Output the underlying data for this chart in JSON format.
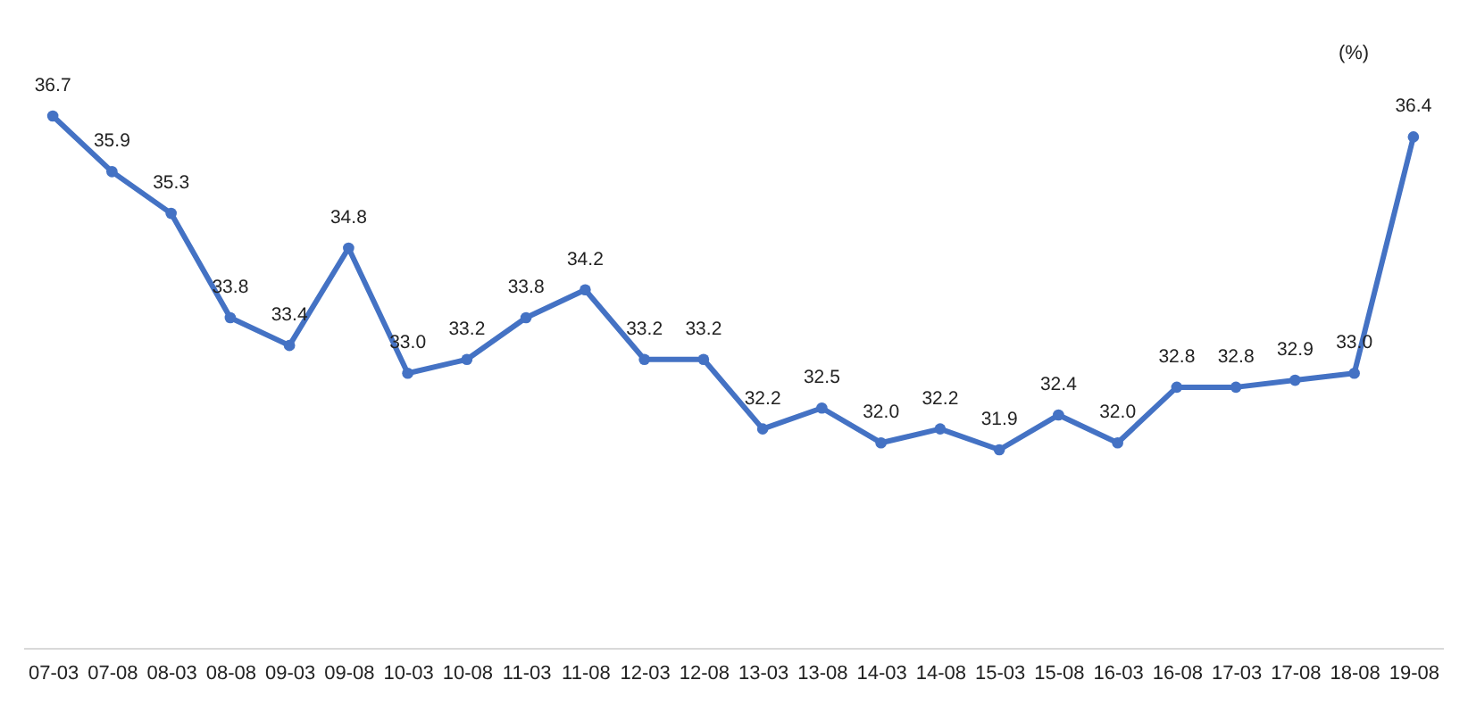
{
  "chart_data": {
    "type": "line",
    "categories": [
      "07-03",
      "07-08",
      "08-03",
      "08-08",
      "09-03",
      "09-08",
      "10-03",
      "10-08",
      "11-03",
      "11-08",
      "12-03",
      "12-08",
      "13-03",
      "13-08",
      "14-03",
      "14-08",
      "15-03",
      "15-08",
      "16-03",
      "16-08",
      "17-03",
      "17-08",
      "18-08",
      "19-08"
    ],
    "series": [
      {
        "color": "#4472c4",
        "values": [
          36.7,
          35.9,
          35.3,
          33.8,
          33.4,
          34.8,
          33.0,
          33.2,
          33.8,
          34.2,
          33.2,
          33.2,
          32.2,
          32.5,
          32.0,
          32.2,
          31.9,
          32.4,
          32.0,
          32.8,
          32.8,
          32.9,
          33.0,
          36.4
        ],
        "value_labels": [
          "36.7",
          "35.9",
          "35.3",
          "33.8",
          "33.4",
          "34.8",
          "33.0",
          "33.2",
          "33.8",
          "34.2",
          "33.2",
          "33.2",
          "32.2",
          "32.5",
          "32.0",
          "32.2",
          "31.9",
          "32.4",
          "32.0",
          "32.8",
          "32.8",
          "32.9",
          "33.0",
          "36.4"
        ]
      }
    ],
    "marker": "circle",
    "line_style": "solid",
    "grid": false,
    "tick_labels": "x",
    "annotations": [
      "(%)"
    ]
  }
}
